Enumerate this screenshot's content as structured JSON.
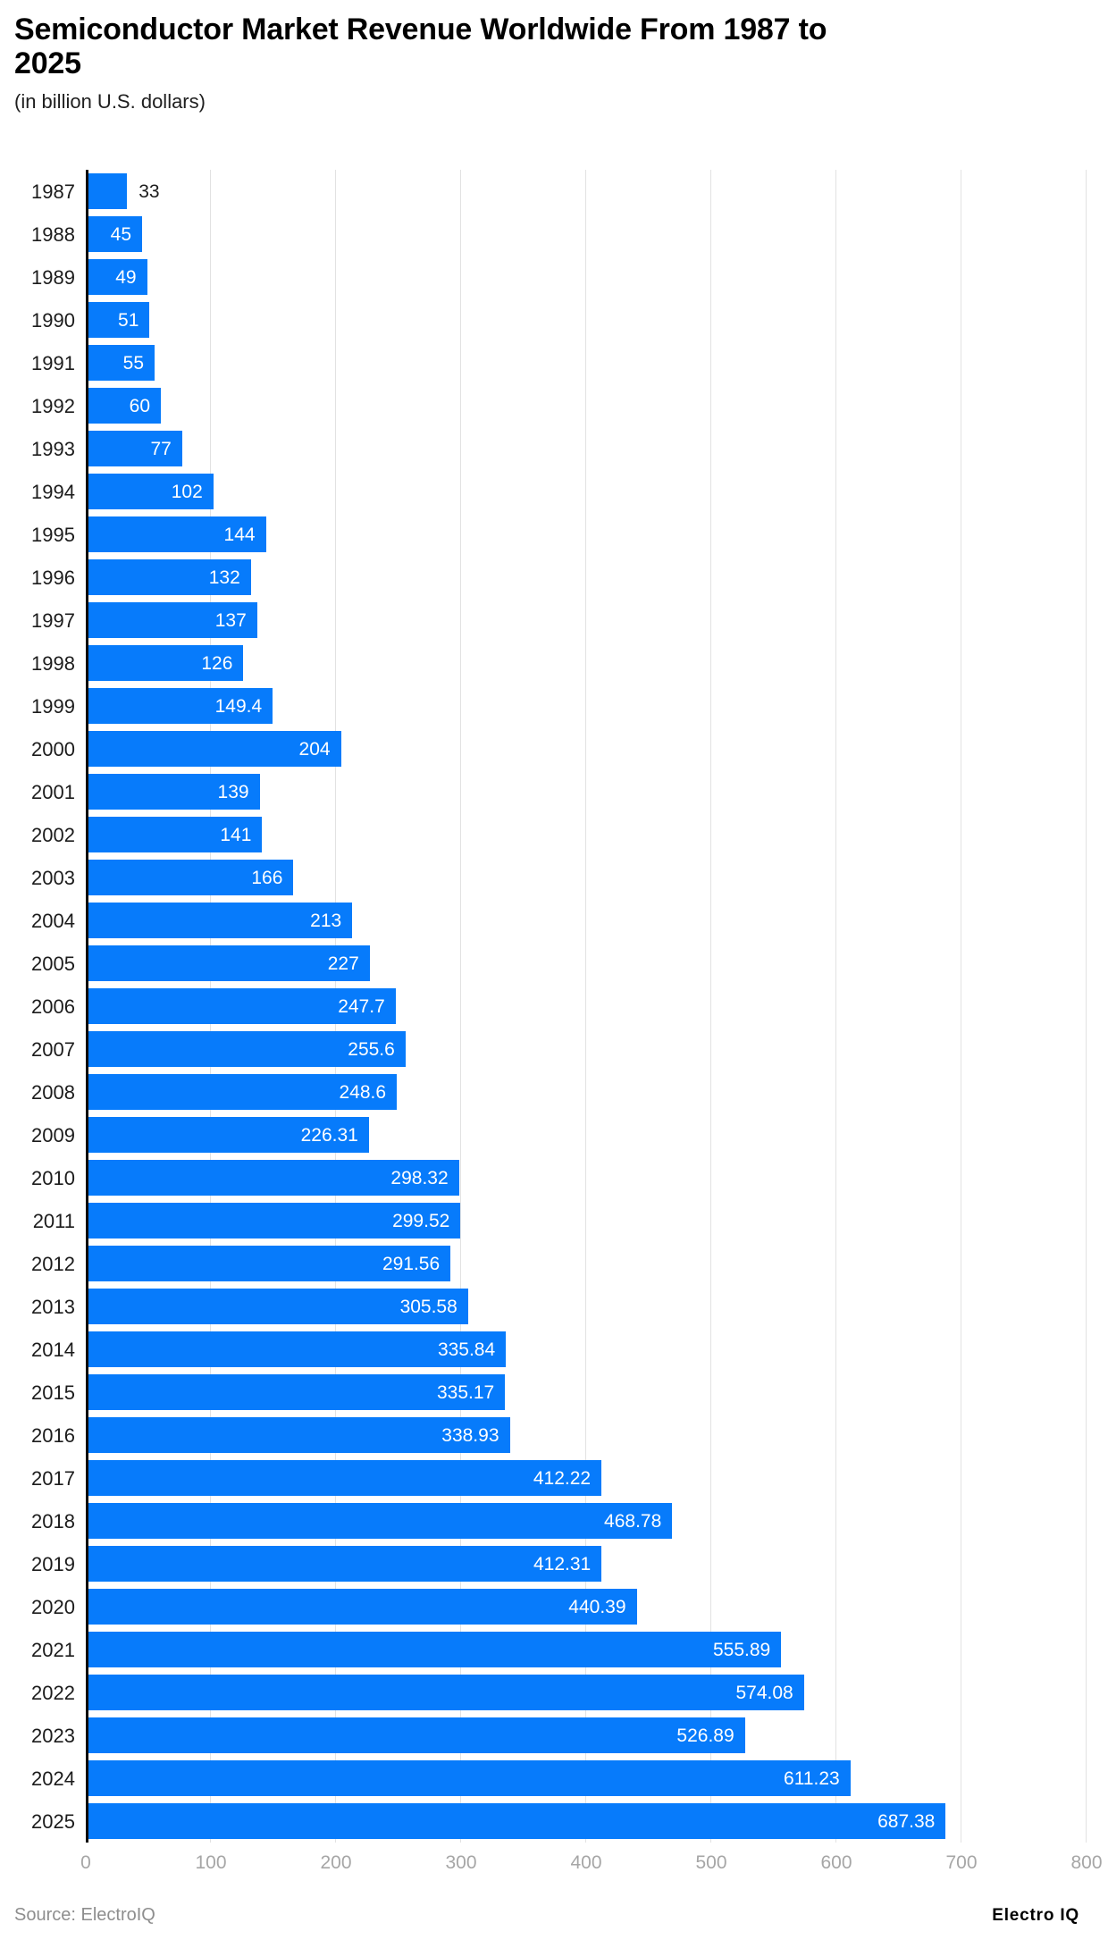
{
  "header": {
    "title": "Semiconductor Market Revenue Worldwide From 1987 to\n2025",
    "subtitle": "(in billion U.S. dollars)"
  },
  "chart_data": {
    "type": "bar",
    "orientation": "horizontal",
    "title": "Semiconductor Market Revenue Worldwide From 1987 to 2025",
    "subtitle": "(in billion U.S. dollars)",
    "xlabel": "",
    "ylabel": "",
    "xlim": [
      0,
      800
    ],
    "x_ticks": [
      0,
      100,
      200,
      300,
      400,
      500,
      600,
      700,
      800
    ],
    "grid": true,
    "legend": false,
    "bar_color": "#077bfb",
    "gridline_color": "#e2e2e2",
    "axis_line_color": "#0a0a0a",
    "tick_label_color": "#a6a6a6",
    "categories": [
      "1987",
      "1988",
      "1989",
      "1990",
      "1991",
      "1992",
      "1993",
      "1994",
      "1995",
      "1996",
      "1997",
      "1998",
      "1999",
      "2000",
      "2001",
      "2002",
      "2003",
      "2004",
      "2005",
      "2006",
      "2007",
      "2008",
      "2009",
      "2010",
      "2011",
      "2012",
      "2013",
      "2014",
      "2015",
      "2016",
      "2017",
      "2018",
      "2019",
      "2020",
      "2021",
      "2022",
      "2023",
      "2024",
      "2025"
    ],
    "values": [
      33,
      45,
      49,
      51,
      55,
      60,
      77,
      102,
      144,
      132,
      137,
      126,
      149.4,
      204,
      139,
      141,
      166,
      213,
      227,
      247.7,
      255.6,
      248.6,
      226.31,
      298.32,
      299.52,
      291.56,
      305.58,
      335.84,
      335.17,
      338.93,
      412.22,
      468.78,
      412.31,
      440.39,
      555.89,
      574.08,
      526.89,
      611.23,
      687.38
    ]
  },
  "footer": {
    "source": "Source: ElectroIQ",
    "brand": "Electro IQ"
  }
}
